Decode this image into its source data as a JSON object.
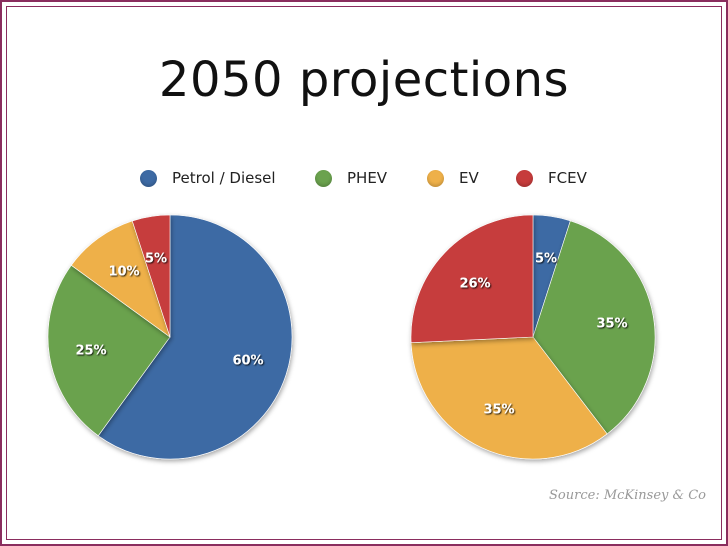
{
  "title": "2050 projections",
  "source": "Source: McKinsey & Co",
  "colors": {
    "petrol_diesel": "#3d6aa4",
    "phev": "#6ba24e",
    "ev": "#eeb049",
    "fcev": "#c63c3c",
    "frame": "#8a2d5e"
  },
  "chart_data": [
    {
      "type": "pie",
      "title": "",
      "legend": "top",
      "categories": [
        "Petrol / Diesel",
        "PHEV",
        "EV",
        "FCEV"
      ],
      "values": [
        60,
        25,
        10,
        5
      ],
      "labels": [
        "60%",
        "25%",
        "10%",
        "5%"
      ]
    },
    {
      "type": "pie",
      "title": "",
      "legend": "top",
      "categories": [
        "Petrol / Diesel",
        "PHEV",
        "EV",
        "FCEV"
      ],
      "values": [
        5,
        35,
        35,
        26
      ],
      "labels": [
        "5%",
        "35%",
        "35%",
        "26%"
      ]
    }
  ],
  "legend": {
    "items": [
      {
        "label": "Petrol / Diesel",
        "color": "#3d6aa4"
      },
      {
        "label": "PHEV",
        "color": "#6ba24e"
      },
      {
        "label": "EV",
        "color": "#eeb049"
      },
      {
        "label": "FCEV",
        "color": "#c63c3c"
      }
    ]
  }
}
